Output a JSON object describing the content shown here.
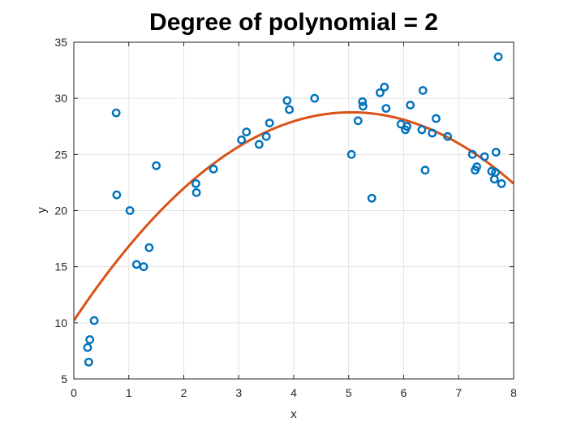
{
  "chart_data": {
    "type": "scatter",
    "title": "Degree of polynomial = 2",
    "xlabel": "x",
    "ylabel": "y",
    "xlim": [
      0,
      8
    ],
    "ylim": [
      5,
      35
    ],
    "xticks": [
      "0",
      "1",
      "2",
      "3",
      "4",
      "5",
      "6",
      "7",
      "8"
    ],
    "yticks": [
      "5",
      "10",
      "15",
      "20",
      "25",
      "30",
      "35"
    ],
    "grid": true,
    "colors": {
      "points": "#0072BD",
      "fit": "#D95319",
      "grid": "#e3e3e3",
      "axes": "#262626"
    },
    "points": [
      [
        0.25,
        7.8
      ],
      [
        0.27,
        6.5
      ],
      [
        0.29,
        8.5
      ],
      [
        0.37,
        10.2
      ],
      [
        0.77,
        28.7
      ],
      [
        0.78,
        21.4
      ],
      [
        1.02,
        20.0
      ],
      [
        1.14,
        15.2
      ],
      [
        1.27,
        15.0
      ],
      [
        1.37,
        16.7
      ],
      [
        1.5,
        24.0
      ],
      [
        2.22,
        22.4
      ],
      [
        2.23,
        21.6
      ],
      [
        2.54,
        23.7
      ],
      [
        3.05,
        26.3
      ],
      [
        3.14,
        27.0
      ],
      [
        3.37,
        25.9
      ],
      [
        3.5,
        26.6
      ],
      [
        3.56,
        27.8
      ],
      [
        3.88,
        29.8
      ],
      [
        3.92,
        29.0
      ],
      [
        4.38,
        30.0
      ],
      [
        5.05,
        25.0
      ],
      [
        5.17,
        28.0
      ],
      [
        5.25,
        29.7
      ],
      [
        5.26,
        29.3
      ],
      [
        5.42,
        21.1
      ],
      [
        5.57,
        30.5
      ],
      [
        5.65,
        31.0
      ],
      [
        5.68,
        29.1
      ],
      [
        5.95,
        27.7
      ],
      [
        6.03,
        27.2
      ],
      [
        6.06,
        27.5
      ],
      [
        6.12,
        29.4
      ],
      [
        6.33,
        27.2
      ],
      [
        6.35,
        30.7
      ],
      [
        6.39,
        23.6
      ],
      [
        6.52,
        26.9
      ],
      [
        6.59,
        28.2
      ],
      [
        6.8,
        26.6
      ],
      [
        7.25,
        25.0
      ],
      [
        7.3,
        23.6
      ],
      [
        7.33,
        23.9
      ],
      [
        7.47,
        24.8
      ],
      [
        7.6,
        23.5
      ],
      [
        7.65,
        22.8
      ],
      [
        7.67,
        23.4
      ],
      [
        7.68,
        25.2
      ],
      [
        7.72,
        33.7
      ],
      [
        7.78,
        22.4
      ]
    ],
    "fit": {
      "degree": 2,
      "coefficients": [
        10.2,
        7.35,
        -0.728
      ]
    }
  }
}
